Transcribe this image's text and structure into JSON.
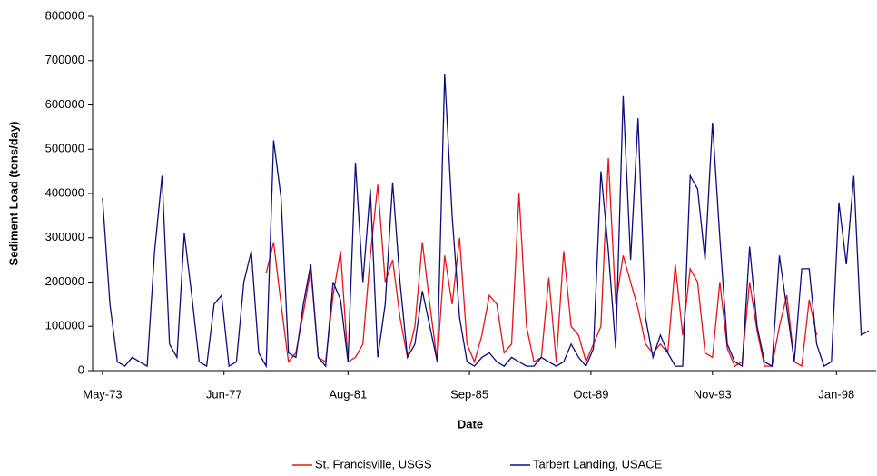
{
  "chart_data": {
    "type": "line",
    "x_label": "Date",
    "y_label": "Sediment Load (tons/day)",
    "x": [
      "1973-05",
      "1973-08",
      "1973-11",
      "1974-02",
      "1974-05",
      "1974-08",
      "1974-11",
      "1975-02",
      "1975-05",
      "1975-08",
      "1975-11",
      "1976-02",
      "1976-05",
      "1976-08",
      "1976-11",
      "1977-02",
      "1977-05",
      "1977-08",
      "1977-11",
      "1978-02",
      "1978-05",
      "1978-08",
      "1978-11",
      "1979-02",
      "1979-05",
      "1979-08",
      "1979-11",
      "1980-02",
      "1980-05",
      "1980-08",
      "1980-11",
      "1981-02",
      "1981-05",
      "1981-08",
      "1981-11",
      "1982-02",
      "1982-05",
      "1982-08",
      "1982-11",
      "1983-02",
      "1983-05",
      "1983-08",
      "1983-11",
      "1984-02",
      "1984-05",
      "1984-08",
      "1984-11",
      "1985-02",
      "1985-05",
      "1985-08",
      "1985-11",
      "1986-02",
      "1986-05",
      "1986-08",
      "1986-11",
      "1987-02",
      "1987-05",
      "1987-08",
      "1987-11",
      "1988-02",
      "1988-05",
      "1988-08",
      "1988-11",
      "1989-02",
      "1989-05",
      "1989-08",
      "1989-11",
      "1990-02",
      "1990-05",
      "1990-08",
      "1990-11",
      "1991-02",
      "1991-05",
      "1991-08",
      "1991-11",
      "1992-02",
      "1992-05",
      "1992-08",
      "1992-11",
      "1993-02",
      "1993-05",
      "1993-08",
      "1993-11",
      "1994-02",
      "1994-05",
      "1994-08",
      "1994-11",
      "1995-02",
      "1995-05",
      "1995-08",
      "1995-11",
      "1996-02",
      "1996-05",
      "1996-08",
      "1996-11",
      "1997-02",
      "1997-05",
      "1997-08",
      "1997-11",
      "1998-02",
      "1998-05",
      "1998-08",
      "1998-11",
      "1999-02"
    ],
    "series": [
      {
        "name": "St. Francisville, USGS",
        "color": "#e8141c",
        "values": [
          null,
          null,
          null,
          null,
          null,
          null,
          null,
          null,
          null,
          null,
          null,
          null,
          null,
          null,
          null,
          null,
          null,
          null,
          null,
          null,
          null,
          null,
          220000,
          290000,
          150000,
          20000,
          40000,
          130000,
          230000,
          30000,
          20000,
          170000,
          270000,
          20000,
          30000,
          60000,
          260000,
          420000,
          200000,
          250000,
          120000,
          30000,
          100000,
          290000,
          150000,
          20000,
          260000,
          150000,
          300000,
          60000,
          20000,
          80000,
          170000,
          150000,
          40000,
          60000,
          400000,
          100000,
          20000,
          30000,
          210000,
          20000,
          270000,
          100000,
          80000,
          20000,
          60000,
          100000,
          480000,
          150000,
          260000,
          200000,
          140000,
          60000,
          40000,
          60000,
          40000,
          240000,
          80000,
          230000,
          200000,
          40000,
          30000,
          200000,
          50000,
          10000,
          20000,
          200000,
          90000,
          10000,
          10000,
          100000,
          170000,
          20000,
          10000,
          160000,
          80000,
          null,
          null,
          null,
          null,
          null,
          null,
          null
        ]
      },
      {
        "name": "Tarbert Landing, USACE",
        "color": "#0c0c7c",
        "values": [
          390000,
          150000,
          20000,
          10000,
          30000,
          20000,
          10000,
          270000,
          440000,
          60000,
          30000,
          310000,
          170000,
          20000,
          10000,
          150000,
          170000,
          10000,
          20000,
          200000,
          270000,
          40000,
          10000,
          520000,
          390000,
          40000,
          30000,
          150000,
          240000,
          30000,
          10000,
          200000,
          160000,
          20000,
          470000,
          200000,
          410000,
          30000,
          150000,
          425000,
          200000,
          30000,
          60000,
          180000,
          100000,
          20000,
          670000,
          350000,
          120000,
          20000,
          10000,
          30000,
          40000,
          20000,
          10000,
          30000,
          20000,
          10000,
          10000,
          30000,
          20000,
          10000,
          20000,
          60000,
          30000,
          10000,
          50000,
          450000,
          270000,
          50000,
          620000,
          250000,
          570000,
          120000,
          30000,
          80000,
          40000,
          10000,
          10000,
          440000,
          410000,
          250000,
          560000,
          300000,
          60000,
          20000,
          10000,
          280000,
          100000,
          20000,
          10000,
          260000,
          140000,
          20000,
          230000,
          230000,
          60000,
          10000,
          20000,
          380000,
          240000,
          440000,
          80000,
          90000
        ]
      }
    ],
    "xlim": [
      "1973-01",
      "1999-05"
    ],
    "xticks": [
      {
        "value": "1973-05",
        "label": "May-73"
      },
      {
        "value": "1977-06",
        "label": "Jun-77"
      },
      {
        "value": "1981-08",
        "label": "Aug-81"
      },
      {
        "value": "1985-09",
        "label": "Sep-85"
      },
      {
        "value": "1989-10",
        "label": "Oct-89"
      },
      {
        "value": "1993-11",
        "label": "Nov-93"
      },
      {
        "value": "1998-01",
        "label": "Jan-98"
      }
    ],
    "ylim": [
      0,
      800000
    ],
    "yticks": [
      0,
      100000,
      200000,
      300000,
      400000,
      500000,
      600000,
      700000,
      800000
    ],
    "grid": false,
    "legend": "bottom"
  }
}
